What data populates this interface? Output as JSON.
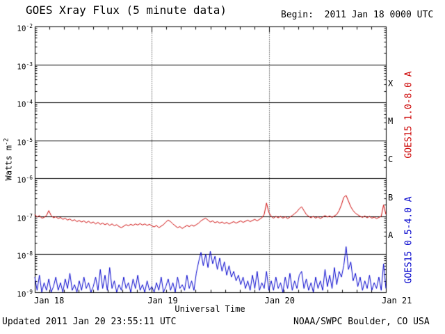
{
  "header": {
    "title": "GOES Xray Flux (5 minute data)",
    "begin_label": "Begin:  2011 Jan 18 0000 UTC"
  },
  "footer": {
    "updated": "Updated 2011 Jan 20 23:55:11 UTC",
    "source": "NOAA/SWPC Boulder, CO USA"
  },
  "chart_data": {
    "type": "line",
    "title": "GOES Xray Flux (5 minute data)",
    "xlabel": "Universal Time",
    "ylabel": "Watts m^-2",
    "ylabel_base": "Watts m",
    "ylabel_exp": "-2",
    "y_scale": "log",
    "y_decade_exponents": [
      -2,
      -3,
      -4,
      -5,
      -6,
      -7,
      -8,
      -9
    ],
    "x_unit": "days since 2011 Jan 18 0000 UTC",
    "x_range_days": [
      0,
      3
    ],
    "x_tick_labels": [
      "Jan 18",
      "Jan 19",
      "Jan 20",
      "Jan 21"
    ],
    "x_minor_tick_hours": 3,
    "grid": {
      "h_lines": "solid at each decade",
      "v_dotted_days": [
        1,
        2
      ]
    },
    "flare_classes": [
      {
        "label": "X",
        "center_exponent": -3.5
      },
      {
        "label": "M",
        "center_exponent": -4.5
      },
      {
        "label": "C",
        "center_exponent": -5.5
      },
      {
        "label": "B",
        "center_exponent": -6.5
      },
      {
        "label": "A",
        "center_exponent": -7.5
      }
    ],
    "series": [
      {
        "name": "GOES15 1.0-8.0 A",
        "color": "#cc0000",
        "t_start_days": 0,
        "t_step_days": 0.02,
        "log10_flux": [
          -6.95,
          -7.02,
          -6.98,
          -7.05,
          -7.03,
          -6.98,
          -6.85,
          -6.98,
          -7.04,
          -7.01,
          -7.06,
          -7.03,
          -7.08,
          -7.05,
          -7.1,
          -7.07,
          -7.12,
          -7.09,
          -7.14,
          -7.11,
          -7.15,
          -7.12,
          -7.17,
          -7.13,
          -7.18,
          -7.15,
          -7.2,
          -7.16,
          -7.21,
          -7.18,
          -7.22,
          -7.19,
          -7.24,
          -7.2,
          -7.25,
          -7.22,
          -7.27,
          -7.3,
          -7.26,
          -7.22,
          -7.25,
          -7.21,
          -7.24,
          -7.2,
          -7.23,
          -7.19,
          -7.23,
          -7.2,
          -7.24,
          -7.21,
          -7.25,
          -7.28,
          -7.24,
          -7.3,
          -7.26,
          -7.22,
          -7.15,
          -7.1,
          -7.14,
          -7.2,
          -7.25,
          -7.3,
          -7.27,
          -7.32,
          -7.28,
          -7.24,
          -7.27,
          -7.23,
          -7.26,
          -7.22,
          -7.18,
          -7.12,
          -7.08,
          -7.05,
          -7.1,
          -7.15,
          -7.12,
          -7.17,
          -7.14,
          -7.18,
          -7.15,
          -7.19,
          -7.16,
          -7.2,
          -7.17,
          -7.14,
          -7.18,
          -7.15,
          -7.12,
          -7.16,
          -7.13,
          -7.1,
          -7.14,
          -7.11,
          -7.08,
          -7.12,
          -7.08,
          -7.04,
          -6.95,
          -6.65,
          -6.9,
          -7.0,
          -7.05,
          -7.0,
          -7.04,
          -7.0,
          -7.05,
          -7.01,
          -7.06,
          -7.02,
          -6.98,
          -6.93,
          -6.88,
          -6.8,
          -6.75,
          -6.85,
          -6.95,
          -7.0,
          -7.04,
          -7.0,
          -7.05,
          -7.01,
          -7.06,
          -7.02,
          -6.98,
          -7.02,
          -6.99,
          -7.03,
          -6.99,
          -6.95,
          -6.85,
          -6.7,
          -6.5,
          -6.45,
          -6.6,
          -6.75,
          -6.85,
          -6.92,
          -6.96,
          -7.0,
          -7.03,
          -6.99,
          -7.04,
          -7.0,
          -7.05,
          -7.02,
          -7.06,
          -7.03,
          -7.0,
          -6.7,
          -6.95
        ]
      },
      {
        "name": "GOES15 0.5-4.0 A",
        "color": "#0000cc",
        "t_start_days": 0,
        "t_step_days": 0.02,
        "log10_flux": [
          -8.6,
          -8.95,
          -8.55,
          -9.0,
          -8.75,
          -8.95,
          -8.65,
          -9.0,
          -8.85,
          -8.6,
          -8.95,
          -8.75,
          -9.0,
          -8.65,
          -8.9,
          -8.5,
          -8.95,
          -8.8,
          -9.0,
          -8.7,
          -8.95,
          -8.6,
          -8.9,
          -8.75,
          -9.0,
          -8.85,
          -8.6,
          -8.95,
          -8.4,
          -8.9,
          -8.55,
          -8.95,
          -8.35,
          -8.9,
          -8.7,
          -9.0,
          -8.8,
          -8.95,
          -8.6,
          -8.9,
          -8.75,
          -9.0,
          -8.65,
          -8.9,
          -8.55,
          -8.95,
          -8.8,
          -9.0,
          -8.7,
          -8.95,
          -8.85,
          -9.0,
          -8.75,
          -8.95,
          -8.6,
          -9.0,
          -8.85,
          -8.65,
          -8.95,
          -8.75,
          -9.0,
          -8.6,
          -8.9,
          -8.8,
          -8.95,
          -8.55,
          -8.9,
          -8.7,
          -8.95,
          -8.5,
          -8.2,
          -7.95,
          -8.3,
          -8.0,
          -8.35,
          -7.92,
          -8.25,
          -8.05,
          -8.4,
          -8.1,
          -8.45,
          -8.2,
          -8.55,
          -8.3,
          -8.6,
          -8.45,
          -8.7,
          -8.55,
          -8.8,
          -8.6,
          -8.9,
          -8.7,
          -8.95,
          -8.55,
          -8.9,
          -8.45,
          -8.95,
          -8.75,
          -8.9,
          -8.45,
          -8.95,
          -8.7,
          -8.95,
          -8.6,
          -8.9,
          -8.75,
          -9.0,
          -8.6,
          -8.9,
          -8.5,
          -8.95,
          -8.7,
          -8.9,
          -8.55,
          -8.45,
          -8.9,
          -8.65,
          -8.95,
          -8.75,
          -9.0,
          -8.6,
          -8.9,
          -8.7,
          -8.95,
          -8.4,
          -8.85,
          -8.55,
          -8.9,
          -8.35,
          -8.8,
          -8.45,
          -8.6,
          -8.3,
          -7.8,
          -8.4,
          -8.2,
          -8.7,
          -8.5,
          -8.85,
          -8.6,
          -8.95,
          -8.7,
          -8.9,
          -8.55,
          -8.95,
          -8.75,
          -8.9,
          -8.6,
          -8.95,
          -8.25,
          -8.9
        ]
      }
    ]
  }
}
